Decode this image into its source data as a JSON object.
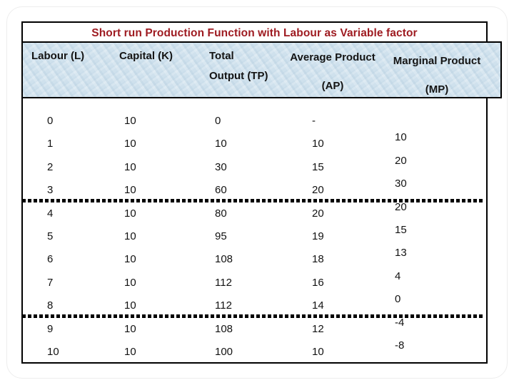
{
  "title": "Short run Production Function with Labour as Variable factor",
  "colors": {
    "title_text": "#9E1B21",
    "header_bg": "#CFE1ED",
    "table_border": "#000000",
    "body_text": "#121212"
  },
  "table": {
    "columns": [
      {
        "key": "labour",
        "line1": "Labour (L)",
        "line2": ""
      },
      {
        "key": "capital",
        "line1": "Capital (K)",
        "line2": ""
      },
      {
        "key": "tp",
        "line1": "Total",
        "line2": "Output (TP)"
      },
      {
        "key": "ap",
        "line1": "Average Product",
        "line2": "(AP)"
      },
      {
        "key": "mp",
        "line1": "Marginal Product",
        "line2": "(MP)"
      }
    ],
    "rows": [
      {
        "labour": "0",
        "capital": "10",
        "tp": "0",
        "ap": "-",
        "mp": ""
      },
      {
        "labour": "1",
        "capital": "10",
        "tp": "10",
        "ap": "10",
        "mp": "10"
      },
      {
        "labour": "2",
        "capital": "10",
        "tp": "30",
        "ap": "15",
        "mp": "20"
      },
      {
        "labour": "3",
        "capital": "10",
        "tp": "60",
        "ap": "20",
        "mp": "30"
      },
      {
        "labour": "4",
        "capital": "10",
        "tp": "80",
        "ap": "20",
        "mp": "20"
      },
      {
        "labour": "5",
        "capital": "10",
        "tp": "95",
        "ap": "19",
        "mp": "15"
      },
      {
        "labour": "6",
        "capital": "10",
        "tp": "108",
        "ap": "18",
        "mp": "13"
      },
      {
        "labour": "7",
        "capital": "10",
        "tp": "112",
        "ap": "16",
        "mp": "4"
      },
      {
        "labour": "8",
        "capital": "10",
        "tp": "112",
        "ap": "14",
        "mp": "0"
      },
      {
        "labour": "9",
        "capital": "10",
        "tp": "108",
        "ap": "12",
        "mp": "-4"
      },
      {
        "labour": "10",
        "capital": "10",
        "tp": "100",
        "ap": "10",
        "mp": "-8"
      }
    ],
    "stage_dividers_after_labour": [
      3,
      8
    ]
  }
}
